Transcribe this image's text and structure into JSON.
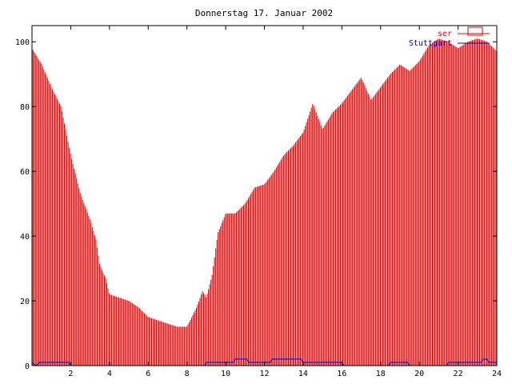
{
  "chart_data": {
    "type": "bar",
    "title": "Donnerstag 17. Januar 2002",
    "xlabel": "",
    "ylabel": "",
    "xlim": [
      0,
      24
    ],
    "ylim": [
      0,
      105
    ],
    "xticks": [
      "2",
      "4",
      "6",
      "8",
      "10",
      "12",
      "14",
      "16",
      "18",
      "20",
      "22",
      "24"
    ],
    "yticks": [
      "0",
      "20",
      "40",
      "60",
      "80",
      "100"
    ],
    "grid": false,
    "legend_position": "top-right",
    "series": [
      {
        "name": "ser",
        "color": "#dd0000",
        "style": "impulses",
        "points": [
          [
            0.0,
            98
          ],
          [
            0.5,
            93
          ],
          [
            1.0,
            86
          ],
          [
            1.5,
            80
          ],
          [
            2.0,
            65
          ],
          [
            2.5,
            53
          ],
          [
            3.0,
            45
          ],
          [
            3.3,
            39
          ],
          [
            3.5,
            31
          ],
          [
            3.8,
            27
          ],
          [
            4.0,
            22
          ],
          [
            4.5,
            21
          ],
          [
            5.0,
            20
          ],
          [
            5.5,
            18
          ],
          [
            6.0,
            15
          ],
          [
            6.5,
            14
          ],
          [
            7.0,
            13
          ],
          [
            7.5,
            12
          ],
          [
            8.0,
            12
          ],
          [
            8.5,
            18
          ],
          [
            8.8,
            23
          ],
          [
            9.0,
            21
          ],
          [
            9.3,
            28
          ],
          [
            9.6,
            41
          ],
          [
            10.0,
            47
          ],
          [
            10.5,
            47
          ],
          [
            11.0,
            50
          ],
          [
            11.5,
            55
          ],
          [
            12.0,
            56
          ],
          [
            12.5,
            60
          ],
          [
            13.0,
            65
          ],
          [
            13.5,
            68
          ],
          [
            14.0,
            72
          ],
          [
            14.5,
            81
          ],
          [
            15.0,
            73
          ],
          [
            15.5,
            78
          ],
          [
            16.0,
            81
          ],
          [
            16.5,
            85
          ],
          [
            17.0,
            89
          ],
          [
            17.5,
            82
          ],
          [
            18.0,
            86
          ],
          [
            18.5,
            90
          ],
          [
            19.0,
            93
          ],
          [
            19.5,
            91
          ],
          [
            20.0,
            94
          ],
          [
            20.5,
            99
          ],
          [
            21.0,
            101
          ],
          [
            21.5,
            100
          ],
          [
            22.0,
            98
          ],
          [
            22.5,
            100
          ],
          [
            23.0,
            101
          ],
          [
            23.5,
            100
          ],
          [
            24.0,
            97
          ]
        ]
      },
      {
        "name": "Stuttgart",
        "color": "#0000cc",
        "style": "lines",
        "points": [
          [
            0.0,
            1
          ],
          [
            0.2,
            0
          ],
          [
            0.4,
            1
          ],
          [
            1.9,
            1
          ],
          [
            2.0,
            0
          ],
          [
            8.9,
            0
          ],
          [
            9.0,
            1
          ],
          [
            10.4,
            1
          ],
          [
            10.5,
            2
          ],
          [
            11.1,
            2
          ],
          [
            11.2,
            1
          ],
          [
            12.3,
            1
          ],
          [
            12.4,
            2
          ],
          [
            13.9,
            2
          ],
          [
            14.0,
            1
          ],
          [
            16.0,
            1
          ],
          [
            16.1,
            0
          ],
          [
            18.4,
            0
          ],
          [
            18.5,
            1
          ],
          [
            19.4,
            1
          ],
          [
            19.5,
            0
          ],
          [
            21.4,
            0
          ],
          [
            21.5,
            1
          ],
          [
            23.2,
            1
          ],
          [
            23.3,
            2
          ],
          [
            23.5,
            2
          ],
          [
            23.6,
            1
          ],
          [
            24.0,
            1
          ]
        ]
      }
    ]
  }
}
